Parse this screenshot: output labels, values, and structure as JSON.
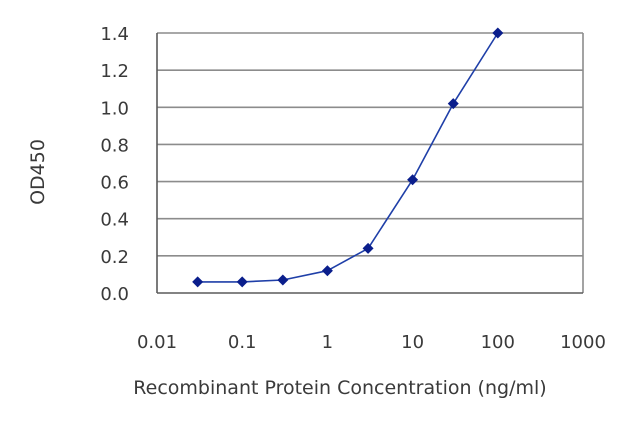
{
  "chart_data": {
    "type": "line",
    "xscale": "log",
    "xlabel": "Recombinant Protein Concentration (ng/ml)",
    "ylabel": "OD450",
    "xlim": [
      0.01,
      1000
    ],
    "ylim": [
      0.0,
      1.4
    ],
    "x_ticks": [
      "0.01",
      "0.1",
      "1",
      "10",
      "100",
      "1000"
    ],
    "y_ticks": [
      "0.0",
      "0.2",
      "0.4",
      "0.6",
      "0.8",
      "1.0",
      "1.2",
      "1.4"
    ],
    "grid": "horizontal",
    "colors": {
      "series": "#1f3fa8",
      "marker": "#0a1e8c",
      "grid": "#8c8c8c",
      "frame": "#5a5a5a",
      "text": "#3a3a3a"
    },
    "series": [
      {
        "x": [
          0.03,
          0.1,
          0.3,
          1,
          3,
          10,
          30,
          100
        ],
        "y": [
          0.06,
          0.06,
          0.07,
          0.12,
          0.24,
          0.61,
          1.02,
          1.4
        ]
      }
    ]
  }
}
